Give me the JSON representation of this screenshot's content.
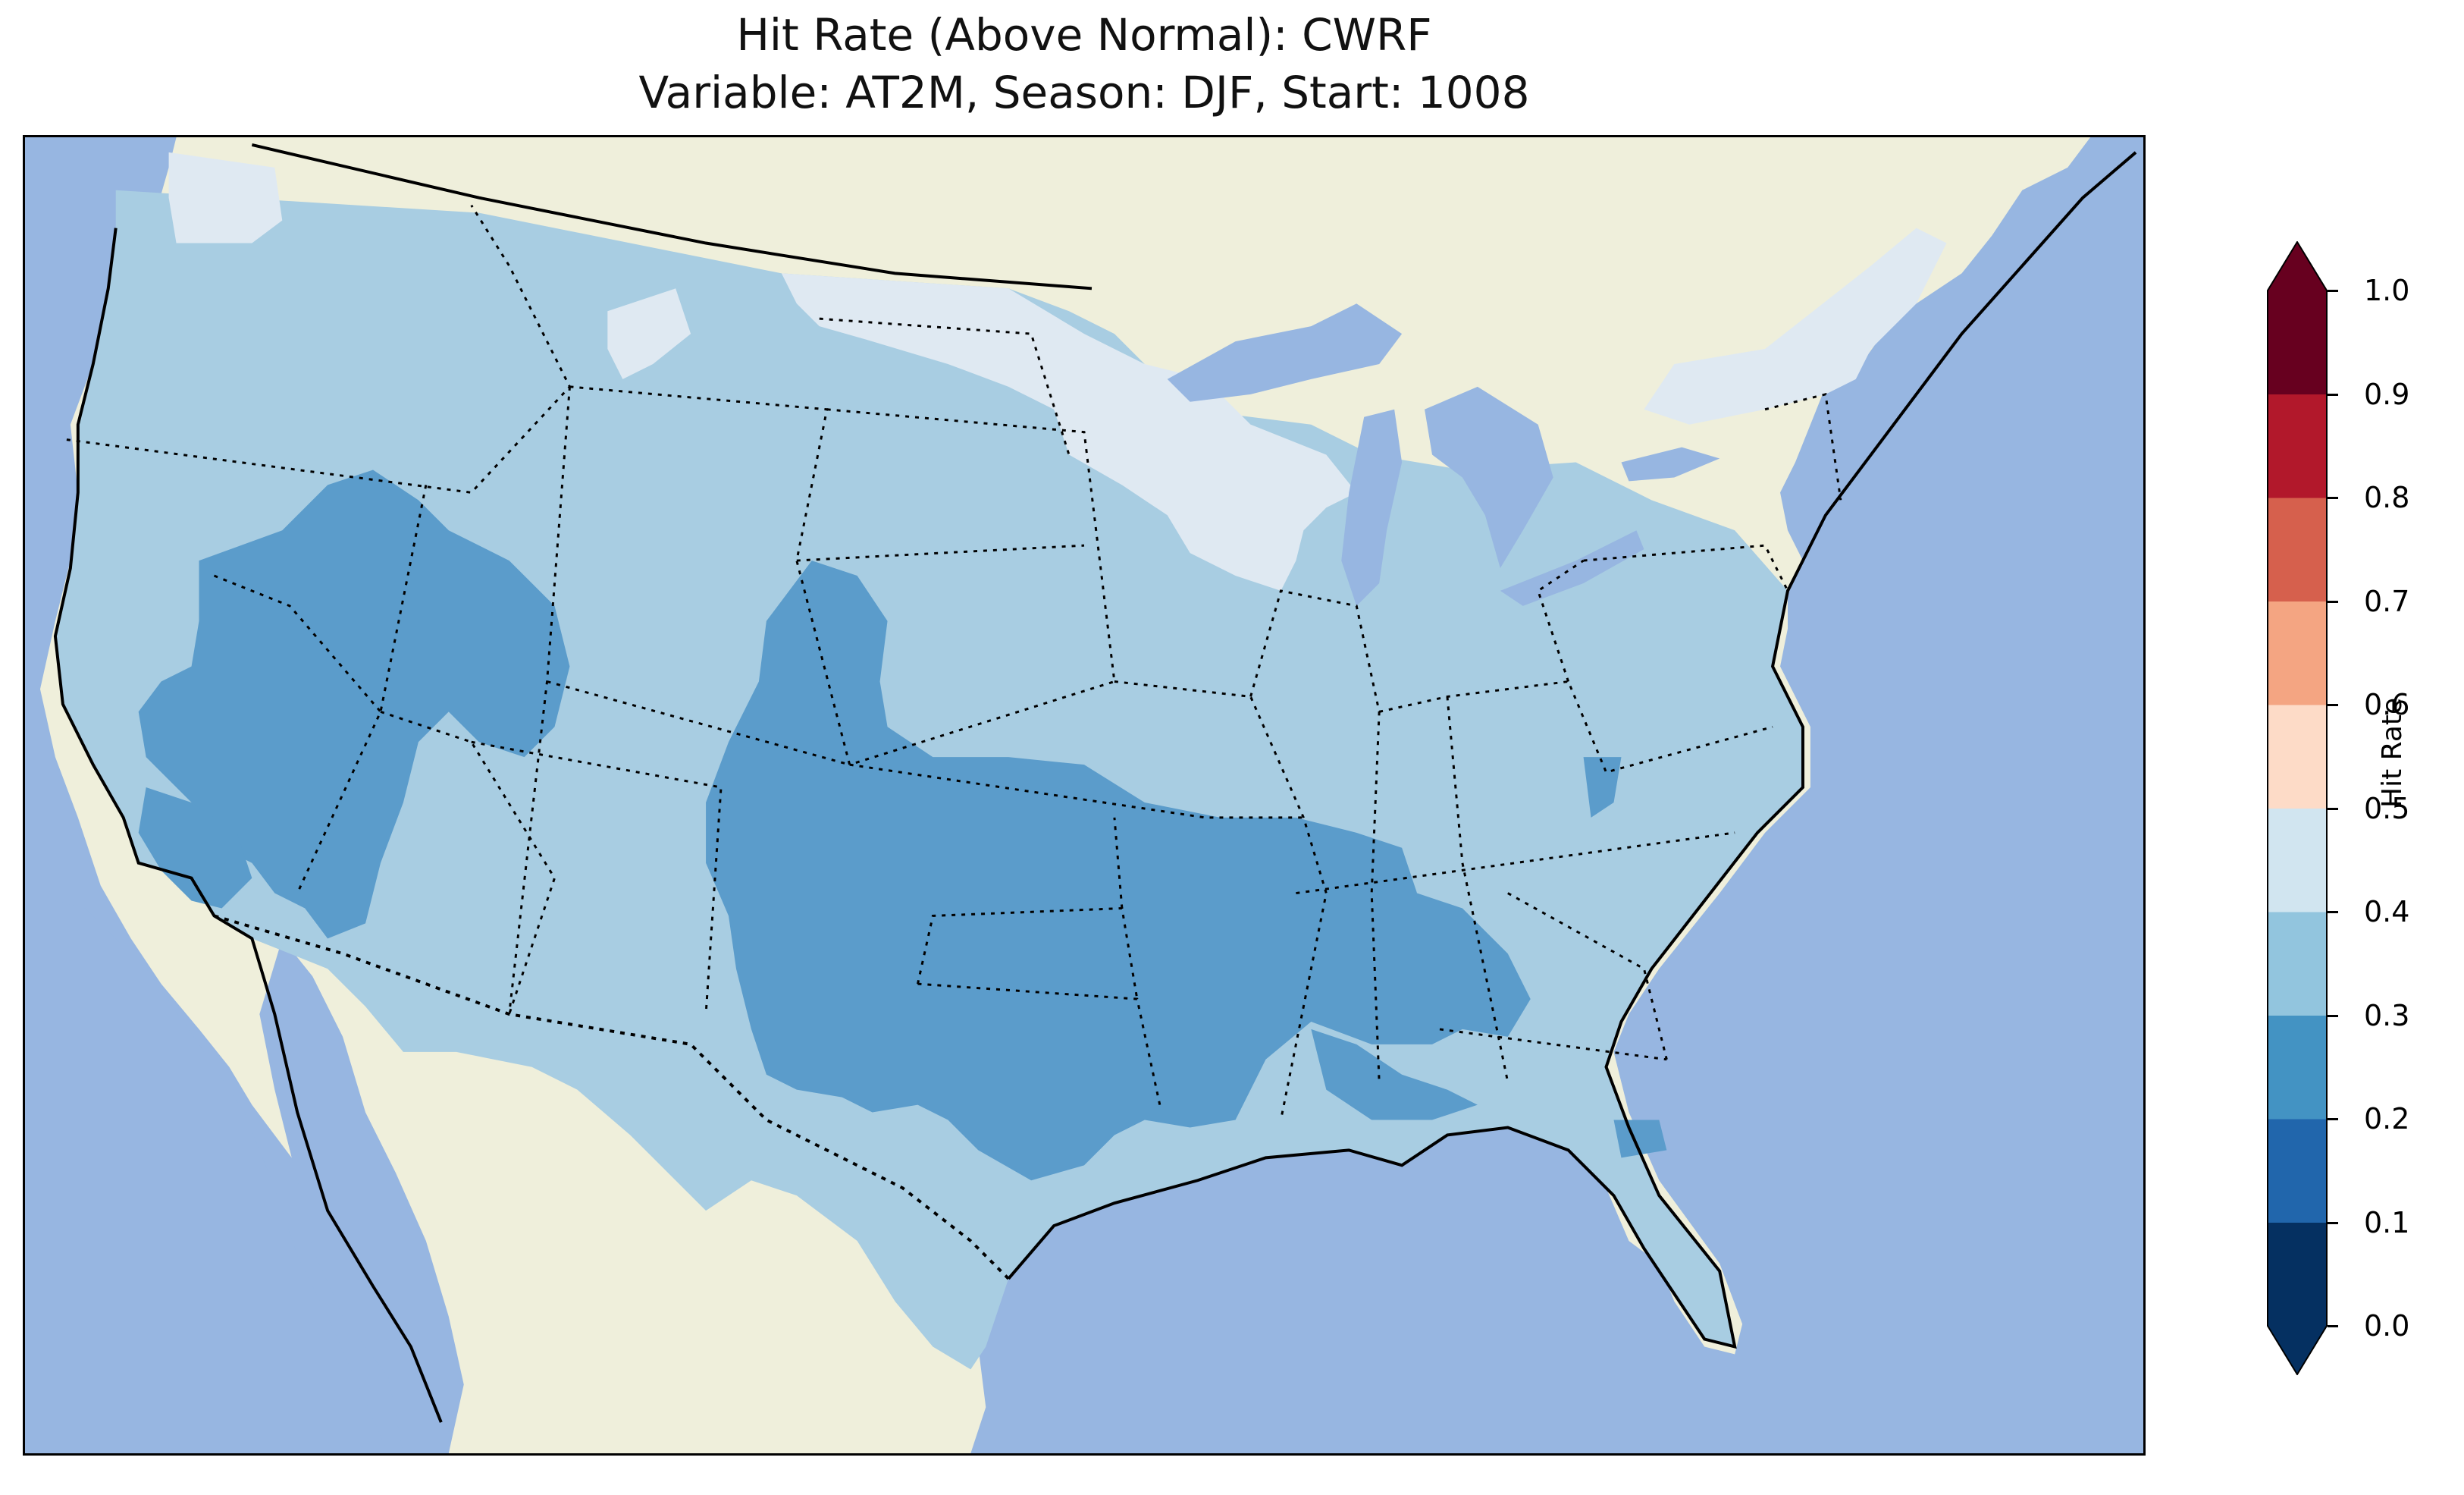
{
  "title": {
    "line1": "Hit Rate (Above Normal): CWRF",
    "line2": "Variable: AT2M, Season: DJF, Start: 1008"
  },
  "colors": {
    "ocean": "#97b6e1",
    "land": "#efefdb",
    "lakes": "#97b6e1"
  },
  "colorbar": {
    "label": "Hit Rate",
    "ticks": [
      "0.0",
      "0.1",
      "0.2",
      "0.3",
      "0.4",
      "0.5",
      "0.6",
      "0.7",
      "0.8",
      "0.9",
      "1.0"
    ],
    "extend": "both",
    "bins": [
      {
        "range": [
          0.0,
          0.1
        ],
        "color": "#053061"
      },
      {
        "range": [
          0.1,
          0.2
        ],
        "color": "#2166ac"
      },
      {
        "range": [
          0.2,
          0.3
        ],
        "color": "#4393c3"
      },
      {
        "range": [
          0.3,
          0.4
        ],
        "color": "#92c5de"
      },
      {
        "range": [
          0.4,
          0.5
        ],
        "color": "#d1e5f0"
      },
      {
        "range": [
          0.5,
          0.6
        ],
        "color": "#fddbc7"
      },
      {
        "range": [
          0.6,
          0.7
        ],
        "color": "#f4a582"
      },
      {
        "range": [
          0.7,
          0.8
        ],
        "color": "#d6604d"
      },
      {
        "range": [
          0.8,
          0.9
        ],
        "color": "#b2182b"
      },
      {
        "range": [
          0.9,
          1.0
        ],
        "color": "#67001f"
      }
    ]
  },
  "map": {
    "region": "Contiguous United States",
    "field": "hit rate by grid cell",
    "dominant_bin": [
      0.3,
      0.4
    ],
    "low_areas_bin": [
      0.2,
      0.3
    ],
    "high_areas_bin": [
      0.4,
      0.5
    ]
  }
}
